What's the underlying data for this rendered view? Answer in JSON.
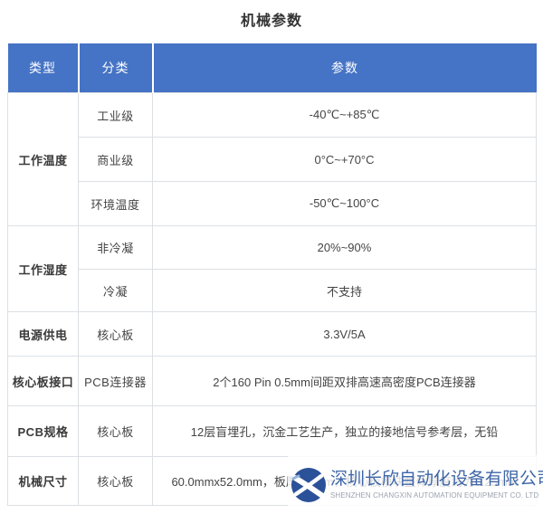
{
  "page_title": "机械参数",
  "table": {
    "headers": [
      "类型",
      "分类",
      "参数"
    ],
    "groups": [
      {
        "type": "工作温度",
        "entries": [
          {
            "category": "工业级",
            "value": "-40℃~+85℃"
          },
          {
            "category": "商业级",
            "value": "0°C~+70°C"
          },
          {
            "category": "环境温度",
            "value": "-50℃~100°C"
          }
        ]
      },
      {
        "type": "工作湿度",
        "entries": [
          {
            "category": "非冷凝",
            "value": "20%~90%"
          },
          {
            "category": "冷凝",
            "value": "不支持"
          }
        ]
      },
      {
        "type": "电源供电",
        "entries": [
          {
            "category": "核心板",
            "value": "3.3V/5A"
          }
        ]
      },
      {
        "type": "核心板接口",
        "entries": [
          {
            "category": "PCB连接器",
            "value": "2个160 Pin 0.5mm间距双排高速高密度PCB连接器"
          }
        ]
      },
      {
        "type": "PCB规格",
        "entries": [
          {
            "category": "核心板",
            "value": "12层盲埋孔，沉金工艺生产，独立的接地信号参考层，无铅"
          }
        ]
      },
      {
        "type": "机械尺寸",
        "entries": [
          {
            "category": "核心板",
            "value": "60.0mmx52.0mm，板厚1.6mm，核心板模块整体厚度约为8.25mm"
          }
        ]
      }
    ]
  },
  "watermark": {
    "logo": "changxin-x-logo",
    "company_cn": "深圳长欣自动化设备有限公司",
    "company_en": "SHENZHEN CHANGXIN AUTOMATION EQUIPMENT CO. LTD"
  },
  "colors": {
    "header_bg": "#4573C5",
    "header_text": "#FFFFFF",
    "body_text": "#444444",
    "border": "#DCE0E4",
    "watermark_blue": "#3E66A8",
    "watermark_gray": "#9AA3AE",
    "logo_blue": "#2B5199"
  }
}
